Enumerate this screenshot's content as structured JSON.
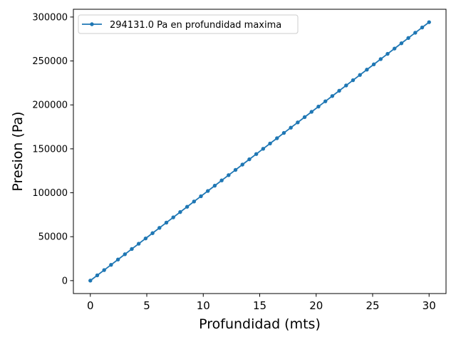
{
  "chart_data": {
    "type": "line",
    "title": "",
    "xlabel": "Profundidad (mts)",
    "ylabel": "Presion (Pa)",
    "xlim": [
      -1.5,
      31.5
    ],
    "ylim": [
      -14706.55,
      308837.55
    ],
    "x_ticks": [
      0,
      5,
      10,
      15,
      20,
      25,
      30
    ],
    "x_tick_labels": [
      "0",
      "5",
      "10",
      "15",
      "20",
      "25",
      "30"
    ],
    "y_ticks": [
      0,
      50000,
      100000,
      150000,
      200000,
      250000,
      300000
    ],
    "y_tick_labels": [
      "0",
      "50000",
      "100000",
      "150000",
      "200000",
      "250000",
      "300000"
    ],
    "grid": false,
    "legend_position": "upper-left",
    "series": [
      {
        "name": "294131.0 Pa en profundidad maxima",
        "color": "#1f77b4",
        "marker": "circle",
        "x": [
          0,
          0.6122,
          1.2245,
          1.8367,
          2.449,
          3.0612,
          3.6735,
          4.2857,
          4.898,
          5.5102,
          6.1224,
          6.7347,
          7.3469,
          7.9592,
          8.5714,
          9.1837,
          9.7959,
          10.4082,
          11.0204,
          11.6327,
          12.2449,
          12.8571,
          13.4694,
          14.0816,
          14.6939,
          15.3061,
          15.9184,
          16.5306,
          17.1429,
          17.7551,
          18.3673,
          18.9796,
          19.5918,
          20.2041,
          20.8163,
          21.4286,
          22.0408,
          22.6531,
          23.2653,
          23.8776,
          24.4898,
          25.102,
          25.7143,
          26.3265,
          26.9388,
          27.551,
          28.1633,
          28.7755,
          29.3878,
          30
        ],
        "y": [
          0,
          6003,
          12005,
          18008,
          24011,
          30013,
          36016,
          42019,
          48021,
          54024,
          60027,
          66029,
          72032,
          78035,
          84037,
          90040,
          96043,
          102045,
          108048,
          114051,
          120053,
          126056,
          132059,
          138061,
          144064,
          150067,
          156069,
          162072,
          168075,
          174077,
          180080,
          186083,
          192085,
          198088,
          204091,
          210094,
          216096,
          222099,
          228102,
          234104,
          240107,
          246110,
          252112,
          258115,
          264118,
          270120,
          276123,
          282126,
          288128,
          294131
        ]
      }
    ]
  }
}
